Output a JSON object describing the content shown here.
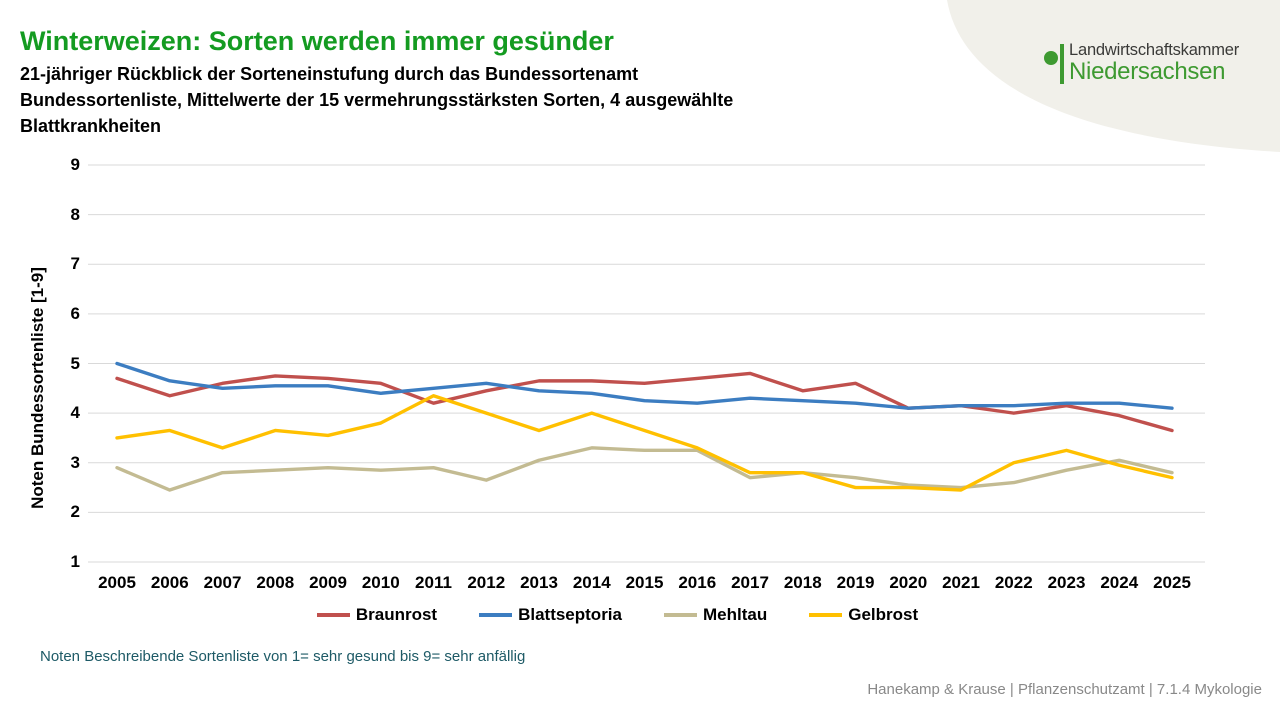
{
  "header": {
    "title": "Winterweizen: Sorten werden immer gesünder",
    "subtitle_lines": [
      "21-jähriger Rückblick der Sorteneinstufung durch das Bundessortenamt",
      "Bundessortenliste, Mittelwerte der 15 vermehrungsstärksten Sorten, 4 ausgewählte",
      "Blattkrankheiten"
    ]
  },
  "logo": {
    "line1": "Landwirtschaftskammer",
    "line2": "Niedersachsen"
  },
  "chart_data": {
    "type": "line",
    "title": "",
    "xlabel": "",
    "ylabel": "Noten Bundessortenliste [1-9]",
    "ylim": [
      1,
      9
    ],
    "yticks": [
      1,
      2,
      3,
      4,
      5,
      6,
      7,
      8,
      9
    ],
    "grid": "horizontal-only",
    "legend_position": "bottom",
    "categories": [
      "2005",
      "2006",
      "2007",
      "2008",
      "2009",
      "2010",
      "2011",
      "2012",
      "2013",
      "2014",
      "2015",
      "2016",
      "2017",
      "2018",
      "2019",
      "2020",
      "2021",
      "2022",
      "2023",
      "2024",
      "2025"
    ],
    "series": [
      {
        "name": "Braunrost",
        "color": "#C0504D",
        "values": [
          4.7,
          4.35,
          4.6,
          4.75,
          4.7,
          4.6,
          4.2,
          4.45,
          4.65,
          4.65,
          4.6,
          4.7,
          4.8,
          4.45,
          4.6,
          4.1,
          4.15,
          4.0,
          4.15,
          3.95,
          3.65
        ]
      },
      {
        "name": "Blattseptoria",
        "color": "#3C7DC1",
        "values": [
          5.0,
          4.65,
          4.5,
          4.55,
          4.55,
          4.4,
          4.5,
          4.6,
          4.45,
          4.4,
          4.25,
          4.2,
          4.3,
          4.25,
          4.2,
          4.1,
          4.15,
          4.15,
          4.2,
          4.2,
          4.1
        ]
      },
      {
        "name": "Mehltau",
        "color": "#C3BB92",
        "values": [
          2.9,
          2.45,
          2.8,
          2.85,
          2.9,
          2.85,
          2.9,
          2.65,
          3.05,
          3.3,
          3.25,
          3.25,
          2.7,
          2.8,
          2.7,
          2.55,
          2.5,
          2.6,
          2.85,
          3.05,
          2.8
        ]
      },
      {
        "name": "Gelbrost",
        "color": "#FFC000",
        "values": [
          3.5,
          3.65,
          3.3,
          3.65,
          3.55,
          3.8,
          4.35,
          4.0,
          3.65,
          4.0,
          3.65,
          3.3,
          2.8,
          2.8,
          2.5,
          2.5,
          2.45,
          3.0,
          3.25,
          2.95,
          2.7
        ]
      }
    ]
  },
  "footnote": "Noten Beschreibende Sortenliste von 1= sehr gesund bis 9= sehr anfällig",
  "footer": "Hanekamp & Krause | Pflanzenschutzamt | 7.1.4 Mykologie",
  "colors": {
    "title-green": "#149B21",
    "logo-green": "#3E9A31",
    "corner-bg": "#F1F0EA",
    "note-color": "#1D5A66",
    "footer-color": "#898989",
    "grid-color": "#D9D9D9",
    "axis-text": "#000000"
  }
}
